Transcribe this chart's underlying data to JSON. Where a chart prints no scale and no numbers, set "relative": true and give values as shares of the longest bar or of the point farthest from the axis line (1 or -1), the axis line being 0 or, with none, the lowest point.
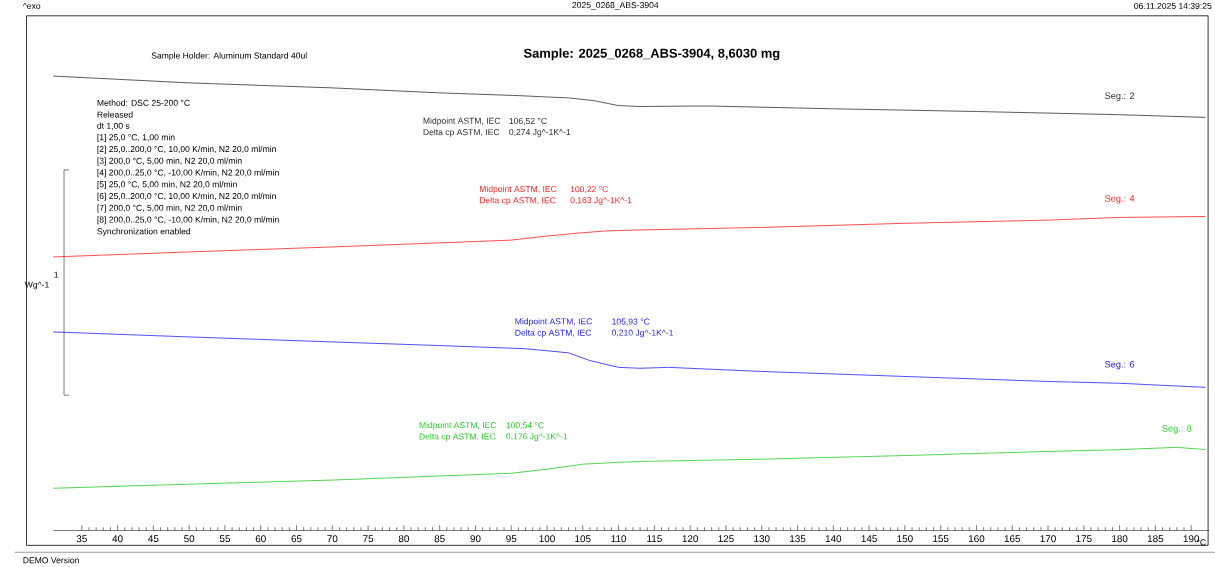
{
  "chart_data": {
    "type": "line",
    "title": "Sample: 2025_0268_ABS-3904, 8,6030 mg",
    "relative": true,
    "xlim": [
      31,
      192.5
    ],
    "xticks": [
      35,
      40,
      45,
      50,
      55,
      60,
      65,
      70,
      75,
      80,
      85,
      90,
      95,
      100,
      105,
      110,
      115,
      120,
      125,
      130,
      135,
      140,
      145,
      150,
      155,
      160,
      165,
      170,
      175,
      180,
      185,
      190
    ],
    "series": [
      {
        "name": "Seg.: 2",
        "color": "#303030",
        "x": [
          31,
          50,
          70,
          85,
          96,
          100,
          103,
          106.5,
          110,
          113,
          120,
          123,
          140,
          160,
          180,
          192
        ],
        "values": [
          1.0,
          0.985,
          0.974,
          0.963,
          0.957,
          0.954,
          0.952,
          0.946,
          0.935,
          0.933,
          0.934,
          0.934,
          0.928,
          0.922,
          0.915,
          0.909
        ]
      },
      {
        "name": "Seg.: 4",
        "color": "#ff2020",
        "x": [
          31,
          50,
          70,
          85,
          95,
          100,
          104,
          108,
          112,
          130,
          150,
          170,
          180,
          192
        ],
        "values": [
          0.602,
          0.613,
          0.624,
          0.633,
          0.639,
          0.648,
          0.654,
          0.659,
          0.661,
          0.667,
          0.676,
          0.683,
          0.689,
          0.691
        ]
      },
      {
        "name": "Seg.: 6",
        "color": "#2020ff",
        "x": [
          31,
          50,
          70,
          85,
          97,
          103,
          106,
          110,
          113,
          117,
          130,
          150,
          170,
          180,
          192
        ],
        "values": [
          0.437,
          0.426,
          0.415,
          0.407,
          0.4,
          0.391,
          0.374,
          0.359,
          0.357,
          0.359,
          0.35,
          0.339,
          0.328,
          0.324,
          0.315
        ]
      },
      {
        "name": "Seg.: 8",
        "color": "#22cc22",
        "x": [
          31,
          50,
          70,
          85,
          95,
          100,
          105,
          110,
          113,
          130,
          150,
          170,
          180,
          188,
          192
        ],
        "values": [
          0.093,
          0.102,
          0.111,
          0.12,
          0.126,
          0.135,
          0.146,
          0.15,
          0.152,
          0.157,
          0.165,
          0.174,
          0.178,
          0.183,
          0.178
        ]
      }
    ],
    "annotations": [
      "^exo",
      "2025_0268_ABS-3904",
      "06.11.2025 14:39:25",
      "Sample Holder: Aluminum Standard 40ul",
      "Method: DSC 25-200 °C",
      "Released",
      "dt 1,00 s",
      "[1] 25,0 °C, 1,00 min",
      "[2] 25,0..200,0 °C, 10,00 K/min, N2 20,0 ml/min",
      "[3] 200,0 °C, 5,00 min, N2 20,0 ml/min",
      "[4] 200,0..25,0 °C, -10,00 K/min, N2 20,0 ml/min",
      "[5] 25,0 °C, 5,00 min, N2 20,0 ml/min",
      "[6] 25,0..200,0 °C, 10,00 K/min, N2 20,0 ml/min",
      "[7] 200,0 °C, 5,00 min, N2 20,0 ml/min",
      "[8] 200,0..25,0 °C, -10,00 K/min, N2 20,0 ml/min",
      "Synchronization enabled",
      "Midpoint ASTM, IEC",
      "106,52 °C",
      "Delta cp ASTM, IEC",
      "0,274 Jg^-1K^-1",
      "Midpoint ASTM, IEC",
      "100,22 °C",
      "Delta cp ASTM, IEC",
      "0,163 Jg^-1K^-1",
      "Midpoint ASTM, IEC",
      "105,93 °C",
      "Delta cp ASTM, IEC",
      "0,210 Jg^-1K^-1",
      "Midpoint ASTM, IEC",
      "100,54 °C",
      "Delta cp ASTM, IEC",
      "0,176 Jg^-1K^-1",
      "1",
      "DEMO Version",
      "Wg^-1",
      "°C"
    ]
  }
}
